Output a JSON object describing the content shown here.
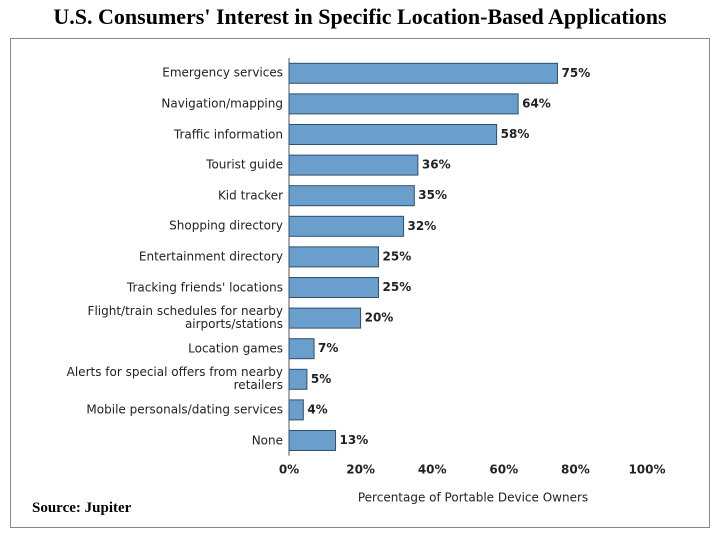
{
  "chart_data": {
    "type": "bar",
    "orientation": "horizontal",
    "title": "U.S. Consumers' Interest in Specific Location-Based Applications",
    "categories": [
      "Emergency services",
      "Navigation/mapping",
      "Traffic information",
      "Tourist guide",
      "Kid tracker",
      "Shopping directory",
      "Entertainment directory",
      "Tracking friends' locations",
      "Flight/train schedules for nearby airports/stations",
      "Location games",
      "Alerts for special offers from nearby retailers",
      "Mobile personals/dating services",
      "None"
    ],
    "values": [
      75,
      64,
      58,
      36,
      35,
      32,
      25,
      25,
      20,
      7,
      5,
      4,
      13
    ],
    "value_labels": [
      "75%",
      "64%",
      "58%",
      "36%",
      "35%",
      "32%",
      "25%",
      "25%",
      "20%",
      "7%",
      "5%",
      "4%",
      "13%"
    ],
    "color": "#6a9fcd",
    "xlim": [
      0,
      100
    ],
    "xticks": [
      {
        "value": 0,
        "label": "0%"
      },
      {
        "value": 20,
        "label": "20%"
      },
      {
        "value": 40,
        "label": "40%"
      },
      {
        "value": 60,
        "label": "60%"
      },
      {
        "value": 80,
        "label": "80%"
      },
      {
        "value": 100,
        "label": "100%"
      }
    ],
    "xlabel": "Percentage of Portable Device Owners",
    "source": "Source: Jupiter",
    "grid": false
  }
}
